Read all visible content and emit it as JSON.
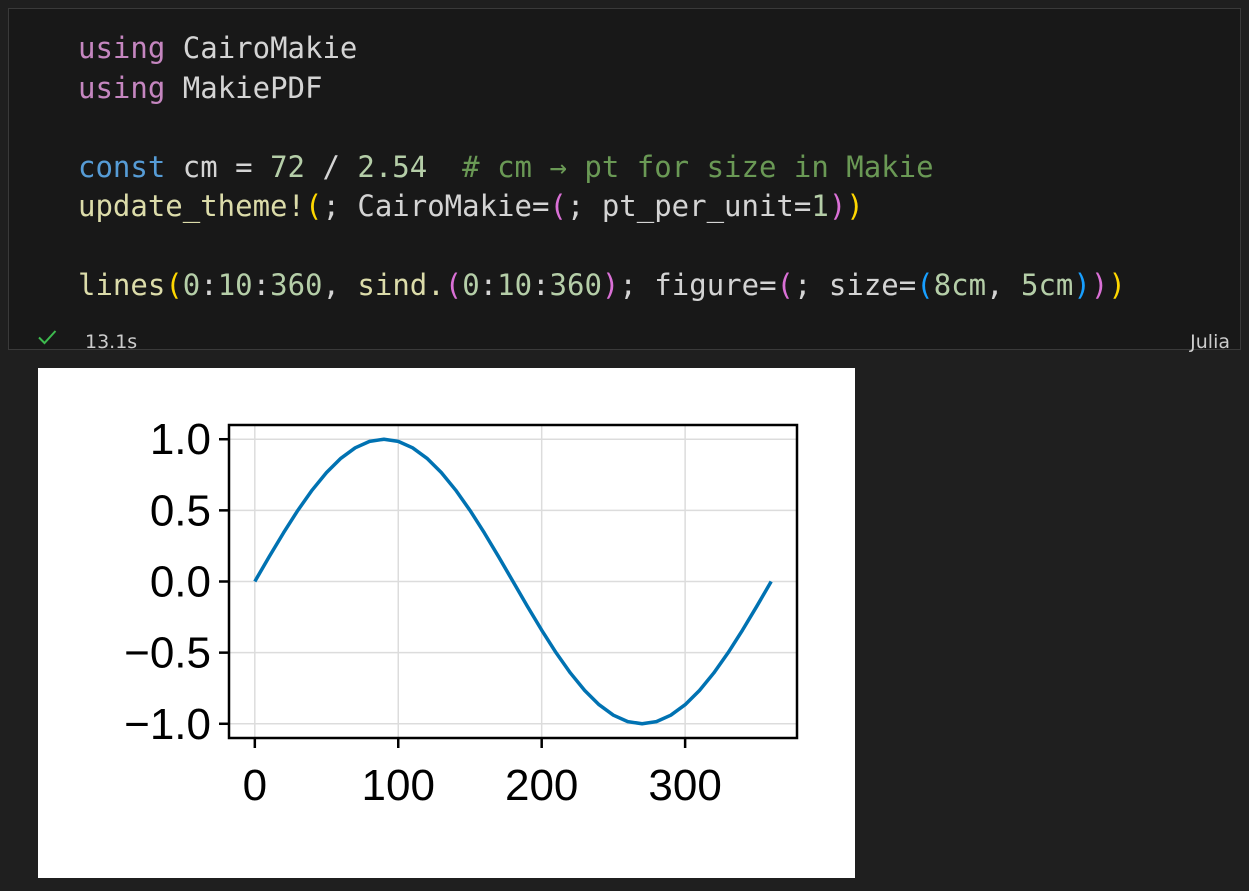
{
  "cell": {
    "code_lines": [
      [
        {
          "t": "using",
          "c": "kw-pink"
        },
        {
          "t": " CairoMakie",
          "c": ""
        }
      ],
      [
        {
          "t": "using",
          "c": "kw-pink"
        },
        {
          "t": " MakiePDF",
          "c": ""
        }
      ],
      [],
      [
        {
          "t": "const",
          "c": "kw-blue"
        },
        {
          "t": " cm = ",
          "c": ""
        },
        {
          "t": "72",
          "c": "num"
        },
        {
          "t": " / ",
          "c": ""
        },
        {
          "t": "2.54",
          "c": "num"
        },
        {
          "t": "  # cm → pt for size in Makie",
          "c": "cm"
        }
      ],
      [
        {
          "t": "update_theme!",
          "c": "fn"
        },
        {
          "t": "(",
          "c": "b1"
        },
        {
          "t": "; CairoMakie=",
          "c": ""
        },
        {
          "t": "(",
          "c": "b2"
        },
        {
          "t": "; pt_per_unit=",
          "c": ""
        },
        {
          "t": "1",
          "c": "num"
        },
        {
          "t": ")",
          "c": "b2"
        },
        {
          "t": ")",
          "c": "b1"
        }
      ],
      [],
      [
        {
          "t": "lines",
          "c": "fn"
        },
        {
          "t": "(",
          "c": "b1"
        },
        {
          "t": "0",
          "c": "num"
        },
        {
          "t": ":",
          "c": ""
        },
        {
          "t": "10",
          "c": "num"
        },
        {
          "t": ":",
          "c": ""
        },
        {
          "t": "360",
          "c": "num"
        },
        {
          "t": ", ",
          "c": ""
        },
        {
          "t": "sind.",
          "c": "fn"
        },
        {
          "t": "(",
          "c": "b2"
        },
        {
          "t": "0",
          "c": "num"
        },
        {
          "t": ":",
          "c": ""
        },
        {
          "t": "10",
          "c": "num"
        },
        {
          "t": ":",
          "c": ""
        },
        {
          "t": "360",
          "c": "num"
        },
        {
          "t": ")",
          "c": "b2"
        },
        {
          "t": "; figure=",
          "c": ""
        },
        {
          "t": "(",
          "c": "b2"
        },
        {
          "t": "; size=",
          "c": ""
        },
        {
          "t": "(",
          "c": "b3"
        },
        {
          "t": "8cm",
          "c": "num"
        },
        {
          "t": ", ",
          "c": ""
        },
        {
          "t": "5cm",
          "c": "num"
        },
        {
          "t": ")",
          "c": "b3"
        },
        {
          "t": ")",
          "c": "b2"
        },
        {
          "t": ")",
          "c": "b1"
        }
      ]
    ],
    "status": {
      "check_icon": "checkmark-icon",
      "execution_time": "13.1s",
      "language": "Julia"
    }
  },
  "chart_data": {
    "type": "line",
    "title": "",
    "xlabel": "",
    "ylabel": "",
    "x": [
      0,
      10,
      20,
      30,
      40,
      50,
      60,
      70,
      80,
      90,
      100,
      110,
      120,
      130,
      140,
      150,
      160,
      170,
      180,
      190,
      200,
      210,
      220,
      230,
      240,
      250,
      260,
      270,
      280,
      290,
      300,
      310,
      320,
      330,
      340,
      350,
      360
    ],
    "series": [
      {
        "values": [
          0,
          0.1736,
          0.342,
          0.5,
          0.6428,
          0.766,
          0.866,
          0.9397,
          0.9848,
          1,
          0.9848,
          0.9397,
          0.866,
          0.766,
          0.6428,
          0.5,
          0.342,
          0.1736,
          0,
          -0.1736,
          -0.342,
          -0.5,
          -0.6428,
          -0.766,
          -0.866,
          -0.9397,
          -0.9848,
          -1,
          -0.9848,
          -0.9397,
          -0.866,
          -0.766,
          -0.6428,
          -0.5,
          -0.342,
          -0.1736,
          0
        ]
      }
    ],
    "xlim": [
      -18,
      378
    ],
    "ylim": [
      -1.1,
      1.1
    ],
    "xticks": [
      0,
      100,
      200,
      300
    ],
    "xtick_labels": [
      "0",
      "100",
      "200",
      "300"
    ],
    "yticks": [
      1.0,
      0.5,
      0.0,
      -0.5,
      -1.0
    ],
    "ytick_labels": [
      "1.0",
      "0.5",
      "0.0",
      "−0.5",
      "−1.0"
    ],
    "grid": true,
    "legend": "none",
    "line_color": "#0072b2"
  }
}
